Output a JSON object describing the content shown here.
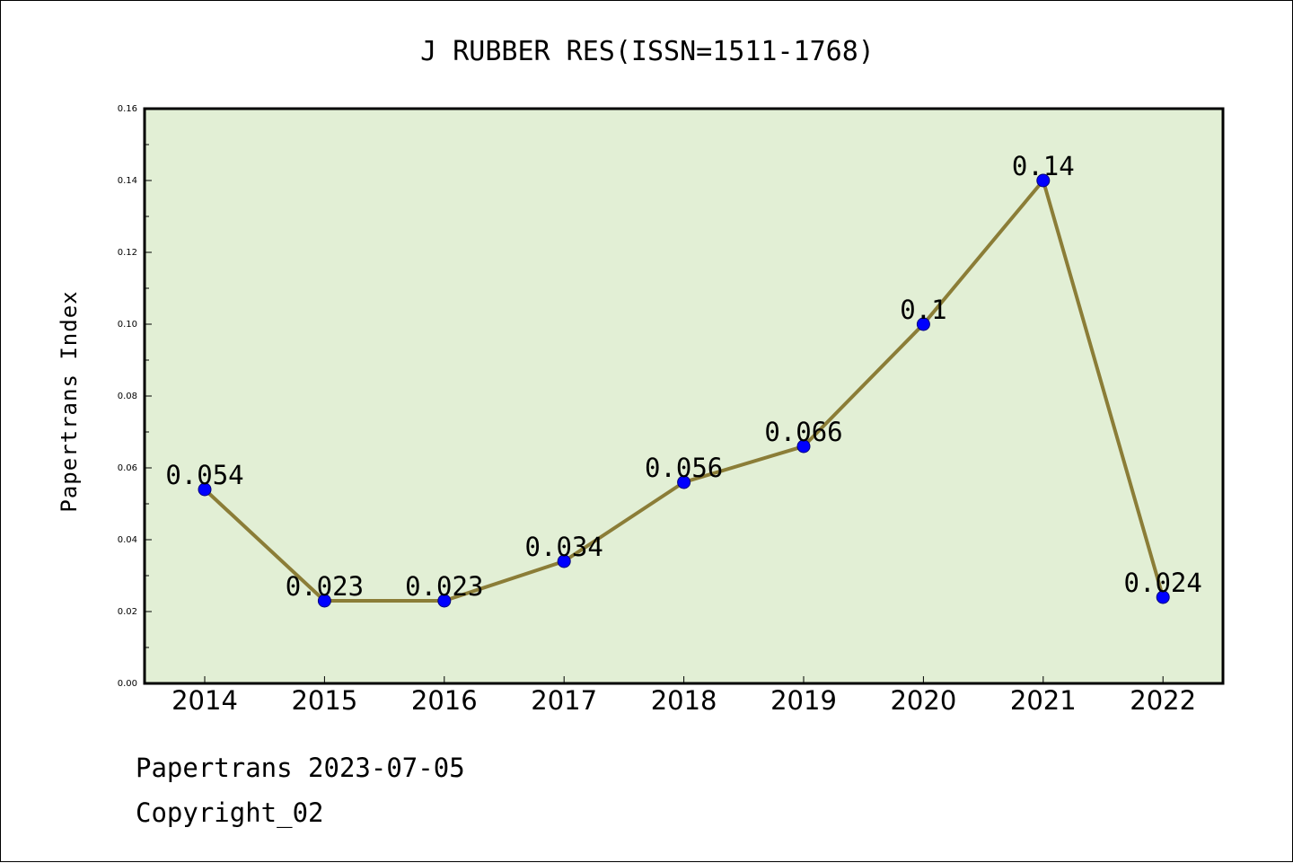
{
  "chart_data": {
    "type": "line",
    "title": "J RUBBER RES(ISSN=1511-1768)",
    "xlabel": "",
    "ylabel": "Papertrans Index",
    "categories": [
      "2014",
      "2015",
      "2016",
      "2017",
      "2018",
      "2019",
      "2020",
      "2021",
      "2022"
    ],
    "series": [
      {
        "values": [
          0.054,
          0.023,
          0.023,
          0.034,
          0.056,
          0.066,
          0.1,
          0.14,
          0.024
        ]
      }
    ],
    "data_labels": [
      "0.054",
      "0.023",
      "0.023",
      "0.034",
      "0.056",
      "0.066",
      "0.1",
      "0.14",
      "0.024"
    ],
    "ylim": [
      0,
      0.16
    ],
    "yticks": [
      "0.00",
      "0.02",
      "0.04",
      "0.06",
      "0.08",
      "0.10",
      "0.12",
      "0.14",
      "0.16"
    ],
    "grid": false,
    "legend": "none",
    "colors": {
      "plot_background": "#e2efd5",
      "line": "#8b7d37",
      "marker": "#0000ff"
    }
  },
  "footer": {
    "line1": "Papertrans 2023-07-05",
    "line2": "Copyright_02"
  }
}
